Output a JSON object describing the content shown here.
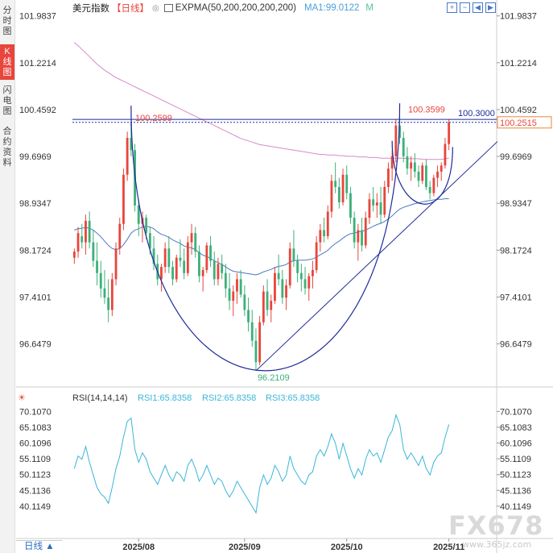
{
  "sidebar": {
    "tabs": [
      {
        "label": "分时图",
        "active": false
      },
      {
        "label": "K线图",
        "active": true
      },
      {
        "label": "闪电图",
        "active": false
      },
      {
        "label": "合约资料",
        "active": false
      }
    ]
  },
  "header": {
    "title": "美元指数",
    "period": "【日线】",
    "exp_label": "EXPMA(50,200,200,200,200)",
    "ma_label": "MA1:99.0122",
    "m_label": "M"
  },
  "rsi_header": {
    "title": "RSI(14,14,14)",
    "rsi1": "RSI1:65.8358",
    "rsi2": "RSI2:65.8358",
    "rsi3": "RSI3:65.8358"
  },
  "bottom_bar": {
    "label": "日线"
  },
  "watermark": {
    "brand": "FX678",
    "site": "www.365jz.com"
  },
  "colors": {
    "up": "#e8453c",
    "down": "#3db07a",
    "ma": "#4a78c2",
    "expma": "#d88ac8",
    "rsi": "#39b6d8",
    "curve": "#1f2a9a",
    "accent": "#e8453c"
  },
  "chart_data": [
    {
      "type": "candlestick",
      "title": "美元指数",
      "price_ticks": [
        "101.9837",
        "101.2214",
        "100.4592",
        "99.6969",
        "98.9347",
        "98.1724",
        "97.4101",
        "96.6479"
      ],
      "ylim": [
        96.21,
        101.98
      ],
      "x_ticks": [
        "2025/08",
        "2025/09",
        "2025/10",
        "2025/11"
      ],
      "annotations": {
        "high_label": "100.2599",
        "peak_label": "100.3599",
        "resistance_label": "100.3000",
        "current_label": "100.2515",
        "low_label": "96.2109"
      },
      "resistance_level": 100.3,
      "current_price": 100.2515,
      "low_price": 96.2109,
      "candles": [
        [
          98.05,
          98.2,
          97.95,
          98.15
        ],
        [
          98.15,
          98.55,
          98.05,
          98.45
        ],
        [
          98.4,
          98.6,
          98.2,
          98.3
        ],
        [
          98.3,
          98.75,
          98.1,
          98.65
        ],
        [
          98.65,
          98.8,
          98.2,
          98.3
        ],
        [
          98.3,
          98.5,
          97.9,
          98.0
        ],
        [
          98.0,
          98.3,
          97.6,
          97.8
        ],
        [
          97.8,
          98.0,
          97.4,
          97.55
        ],
        [
          97.55,
          97.85,
          97.3,
          97.4
        ],
        [
          97.4,
          97.7,
          97.0,
          97.2
        ],
        [
          97.2,
          97.8,
          97.1,
          97.7
        ],
        [
          97.7,
          98.3,
          97.6,
          98.2
        ],
        [
          98.2,
          98.7,
          98.1,
          98.6
        ],
        [
          98.6,
          99.5,
          98.5,
          99.4
        ],
        [
          99.4,
          100.1,
          99.3,
          100.0
        ],
        [
          100.0,
          100.26,
          99.7,
          99.8
        ],
        [
          99.8,
          99.9,
          98.8,
          98.9
        ],
        [
          98.9,
          99.0,
          98.4,
          98.6
        ],
        [
          98.6,
          98.8,
          98.3,
          98.7
        ],
        [
          98.7,
          98.75,
          98.35,
          98.45
        ],
        [
          98.45,
          98.55,
          98.1,
          98.2
        ],
        [
          98.2,
          98.4,
          97.85,
          97.95
        ],
        [
          97.95,
          98.1,
          97.6,
          97.7
        ],
        [
          97.7,
          97.95,
          97.5,
          97.9
        ],
        [
          97.9,
          98.3,
          97.8,
          98.2
        ],
        [
          98.2,
          98.4,
          97.8,
          97.9
        ],
        [
          97.9,
          98.0,
          97.6,
          97.7
        ],
        [
          97.7,
          98.1,
          97.65,
          98.05
        ],
        [
          98.05,
          98.35,
          97.9,
          98.0
        ],
        [
          98.0,
          98.2,
          97.7,
          97.8
        ],
        [
          97.8,
          98.4,
          97.75,
          98.3
        ],
        [
          98.3,
          98.6,
          98.1,
          98.45
        ],
        [
          98.45,
          98.55,
          98.05,
          98.15
        ],
        [
          98.15,
          98.25,
          97.65,
          97.75
        ],
        [
          97.75,
          97.9,
          97.5,
          97.85
        ],
        [
          97.85,
          98.3,
          97.8,
          98.25
        ],
        [
          98.25,
          98.4,
          97.9,
          98.0
        ],
        [
          98.0,
          98.15,
          97.6,
          97.7
        ],
        [
          97.7,
          98.05,
          97.6,
          97.95
        ],
        [
          97.95,
          98.1,
          97.7,
          97.8
        ],
        [
          97.8,
          97.95,
          97.4,
          97.55
        ],
        [
          97.55,
          97.8,
          97.2,
          97.35
        ],
        [
          97.35,
          97.6,
          97.1,
          97.5
        ],
        [
          97.5,
          97.8,
          97.3,
          97.7
        ],
        [
          97.7,
          97.85,
          97.4,
          97.45
        ],
        [
          97.45,
          97.6,
          97.1,
          97.2
        ],
        [
          97.2,
          97.4,
          96.85,
          97.0
        ],
        [
          97.0,
          97.2,
          96.6,
          96.7
        ],
        [
          96.7,
          96.9,
          96.21,
          96.35
        ],
        [
          96.35,
          97.1,
          96.3,
          97.0
        ],
        [
          97.0,
          97.6,
          96.95,
          97.5
        ],
        [
          97.5,
          97.7,
          97.1,
          97.2
        ],
        [
          97.2,
          97.45,
          97.0,
          97.35
        ],
        [
          97.35,
          97.9,
          97.3,
          97.8
        ],
        [
          97.8,
          98.1,
          97.6,
          97.7
        ],
        [
          97.7,
          97.85,
          97.3,
          97.4
        ],
        [
          97.4,
          97.7,
          97.2,
          97.6
        ],
        [
          97.6,
          98.3,
          97.55,
          98.2
        ],
        [
          98.2,
          98.5,
          97.9,
          98.0
        ],
        [
          98.0,
          98.1,
          97.65,
          97.8
        ],
        [
          97.8,
          97.95,
          97.5,
          97.7
        ],
        [
          97.7,
          97.9,
          97.45,
          97.55
        ],
        [
          97.55,
          97.8,
          97.35,
          97.75
        ],
        [
          97.75,
          98.0,
          97.55,
          97.85
        ],
        [
          97.85,
          98.4,
          97.8,
          98.3
        ],
        [
          98.3,
          98.6,
          98.15,
          98.5
        ],
        [
          98.5,
          98.7,
          98.3,
          98.4
        ],
        [
          98.4,
          98.9,
          98.35,
          98.8
        ],
        [
          98.8,
          99.4,
          98.7,
          99.3
        ],
        [
          99.3,
          99.6,
          99.1,
          99.2
        ],
        [
          99.2,
          99.35,
          98.85,
          98.95
        ],
        [
          98.95,
          99.5,
          98.9,
          99.4
        ],
        [
          99.4,
          99.55,
          99.0,
          99.1
        ],
        [
          99.1,
          99.2,
          98.6,
          98.7
        ],
        [
          98.7,
          98.8,
          98.2,
          98.3
        ],
        [
          98.3,
          98.6,
          98.0,
          98.5
        ],
        [
          98.5,
          98.7,
          98.15,
          98.25
        ],
        [
          98.25,
          98.8,
          98.2,
          98.7
        ],
        [
          98.7,
          99.1,
          98.6,
          99.0
        ],
        [
          99.0,
          99.2,
          98.8,
          98.9
        ],
        [
          98.9,
          99.1,
          98.7,
          98.95
        ],
        [
          98.95,
          99.2,
          98.6,
          98.75
        ],
        [
          98.75,
          99.3,
          98.7,
          99.2
        ],
        [
          99.2,
          99.6,
          99.1,
          99.5
        ],
        [
          99.5,
          99.8,
          99.3,
          99.7
        ],
        [
          99.7,
          100.3,
          99.6,
          100.2
        ],
        [
          100.2,
          100.36,
          99.9,
          100.0
        ],
        [
          100.0,
          100.1,
          99.6,
          99.7
        ],
        [
          99.7,
          99.85,
          99.4,
          99.5
        ],
        [
          99.5,
          99.7,
          99.3,
          99.6
        ],
        [
          99.6,
          99.75,
          99.35,
          99.45
        ],
        [
          99.45,
          99.55,
          99.2,
          99.3
        ],
        [
          99.3,
          99.6,
          99.25,
          99.55
        ],
        [
          99.55,
          99.65,
          99.15,
          99.2
        ],
        [
          99.2,
          99.3,
          99.0,
          99.1
        ],
        [
          99.1,
          99.4,
          99.05,
          99.35
        ],
        [
          99.35,
          99.55,
          99.2,
          99.45
        ],
        [
          99.45,
          99.6,
          99.3,
          99.55
        ],
        [
          99.55,
          100.0,
          99.5,
          99.9
        ],
        [
          99.9,
          100.3,
          99.8,
          100.25
        ]
      ],
      "ma_series": [
        98.5,
        98.52,
        98.53,
        98.54,
        98.53,
        98.5,
        98.45,
        98.39,
        98.32,
        98.25,
        98.2,
        98.18,
        98.2,
        98.26,
        98.35,
        98.45,
        98.5,
        98.52,
        98.55,
        98.56,
        98.55,
        98.52,
        98.47,
        98.43,
        98.41,
        98.38,
        98.34,
        98.31,
        98.28,
        98.24,
        98.22,
        98.21,
        98.18,
        98.13,
        98.09,
        98.07,
        98.04,
        98.0,
        97.97,
        97.94,
        97.9,
        97.86,
        97.83,
        97.82,
        97.81,
        97.8,
        97.79,
        97.78,
        97.77,
        97.79,
        97.82,
        97.84,
        97.86,
        97.89,
        97.91,
        97.92,
        97.94,
        97.98,
        98.0,
        98.01,
        98.01,
        98.01,
        98.02,
        98.03,
        98.06,
        98.1,
        98.13,
        98.17,
        98.23,
        98.28,
        98.32,
        98.37,
        98.41,
        98.44,
        98.45,
        98.47,
        98.48,
        98.5,
        98.53,
        98.56,
        98.59,
        98.61,
        98.64,
        98.68,
        98.73,
        98.79,
        98.84,
        98.87,
        98.89,
        98.91,
        98.93,
        98.94,
        98.96,
        98.97,
        98.98,
        98.99,
        99.0,
        99.0,
        99.01,
        99.01
      ],
      "expma_series": [
        101.55,
        101.5,
        101.44,
        101.38,
        101.32,
        101.26,
        101.2,
        101.15,
        101.1,
        101.06,
        101.02,
        100.98,
        100.95,
        100.92,
        100.89,
        100.86,
        100.83,
        100.8,
        100.77,
        100.74,
        100.71,
        100.68,
        100.65,
        100.62,
        100.59,
        100.56,
        100.53,
        100.5,
        100.47,
        100.44,
        100.41,
        100.38,
        100.35,
        100.32,
        100.29,
        100.26,
        100.23,
        100.2,
        100.17,
        100.14,
        100.11,
        100.08,
        100.05,
        100.02,
        99.99,
        99.97,
        99.95,
        99.93,
        99.91,
        99.89,
        99.88,
        99.87,
        99.86,
        99.85,
        99.84,
        99.83,
        99.82,
        99.81,
        99.8,
        99.79,
        99.78,
        99.77,
        99.76,
        99.75,
        99.74,
        99.73,
        99.73,
        99.72,
        99.72,
        99.72,
        99.71,
        99.71,
        99.7,
        99.7,
        99.7,
        99.69,
        99.69,
        99.69,
        99.68,
        99.68,
        99.68,
        99.67,
        99.67,
        99.67,
        99.67,
        99.67,
        99.67,
        99.67,
        99.66,
        99.66,
        99.66,
        99.66,
        99.65,
        99.65,
        99.65,
        99.65,
        99.65,
        99.65,
        99.66,
        99.67
      ],
      "rsi_ticks": [
        "70.1070",
        "65.1083",
        "60.1096",
        "55.1109",
        "50.1123",
        "45.1136",
        "40.1149"
      ],
      "rsi_ylim": [
        36.0,
        72.0
      ],
      "rsi_series": [
        52,
        56,
        55,
        59,
        54,
        50,
        46,
        44,
        43,
        41,
        46,
        52,
        56,
        62,
        67,
        68,
        58,
        54,
        57,
        55,
        51,
        49,
        47,
        50,
        53,
        50,
        48,
        51,
        50,
        48,
        53,
        55,
        52,
        48,
        50,
        53,
        50,
        47,
        49,
        48,
        45,
        43,
        45,
        48,
        46,
        44,
        42,
        40,
        38,
        46,
        50,
        47,
        49,
        53,
        51,
        48,
        50,
        56,
        52,
        50,
        48,
        47,
        50,
        51,
        56,
        58,
        56,
        59,
        63,
        60,
        55,
        60,
        56,
        52,
        49,
        52,
        50,
        55,
        58,
        56,
        57,
        54,
        58,
        62,
        64,
        69,
        66,
        58,
        55,
        57,
        55,
        53,
        56,
        52,
        50,
        54,
        56,
        57,
        62,
        66
      ]
    }
  ]
}
